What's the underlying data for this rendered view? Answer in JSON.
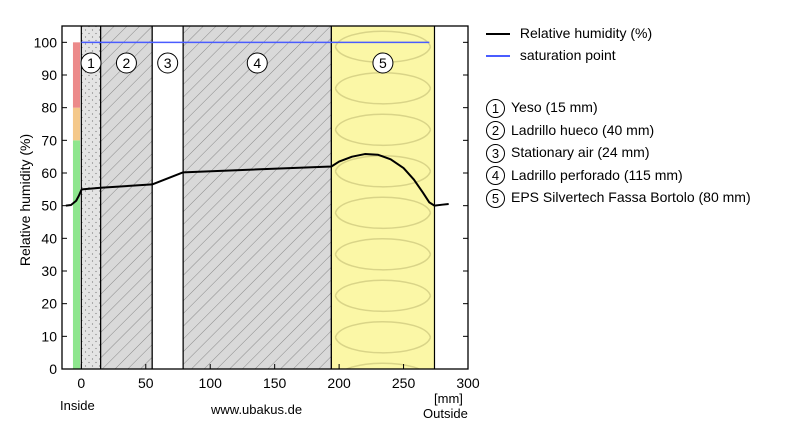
{
  "chart_data": {
    "type": "line",
    "ylabel": "Relative humidity (%)",
    "xunit": "[mm]",
    "xlim": [
      -15,
      300
    ],
    "ylim": [
      0,
      105
    ],
    "xticks": [
      0,
      50,
      100,
      150,
      200,
      250,
      300
    ],
    "yticks": [
      0,
      10,
      20,
      30,
      40,
      50,
      60,
      70,
      80,
      90,
      100
    ],
    "inside_label": "Inside",
    "outside_label": "Outside",
    "source_label": "www.ubakus.de",
    "risk_bands": [
      {
        "from": 0,
        "to": 70,
        "color": "#8ee68e"
      },
      {
        "from": 70,
        "to": 80,
        "color": "#f4c88a"
      },
      {
        "from": 80,
        "to": 100,
        "color": "#ec8a8a"
      }
    ],
    "layers": [
      {
        "num": "1",
        "from": 0,
        "to": 15,
        "name": "Yeso (15 mm)",
        "pattern": "dots"
      },
      {
        "num": "2",
        "from": 15,
        "to": 55,
        "name": "Ladrillo hueco (40 mm)",
        "pattern": "hatch"
      },
      {
        "num": "3",
        "from": 55,
        "to": 79,
        "name": "Stationary air (24 mm)",
        "pattern": "none"
      },
      {
        "num": "4",
        "from": 79,
        "to": 194,
        "name": "Ladrillo perforado (115 mm)",
        "pattern": "hatch"
      },
      {
        "num": "5",
        "from": 194,
        "to": 274,
        "name": "EPS Silvertech Fassa Bortolo (80 mm)",
        "pattern": "insulation"
      }
    ],
    "series": [
      {
        "name": "Relative humidity (%)",
        "color": "#000000",
        "x": [
          -12,
          -8,
          -4,
          -2,
          0,
          0.5,
          15,
          55,
          79,
          194,
          200,
          210,
          220,
          230,
          240,
          250,
          258,
          265,
          270,
          274,
          280,
          285
        ],
        "y": [
          50,
          50.2,
          51.5,
          53,
          54.8,
          55,
          55.5,
          56.5,
          60.2,
          62,
          63.5,
          65,
          65.8,
          65.6,
          64.2,
          61.5,
          58,
          54,
          51,
          50,
          50.3,
          50.5
        ]
      },
      {
        "name": "saturation point",
        "color": "#4a5cff",
        "x": [
          0,
          270
        ],
        "y": [
          100,
          100
        ]
      }
    ]
  }
}
